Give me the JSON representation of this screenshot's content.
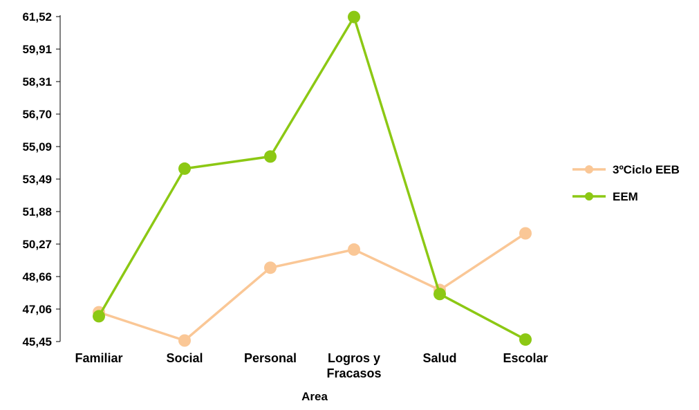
{
  "chart_data": {
    "type": "line",
    "title": "",
    "xlabel": "Area",
    "ylabel": "",
    "categories": [
      "Familiar",
      "Social",
      "Personal",
      "Logros y Fracasos",
      "Salud",
      "Escolar"
    ],
    "category_label_lines": [
      [
        "Familiar"
      ],
      [
        "Social"
      ],
      [
        "Personal"
      ],
      [
        "Logros y",
        "Fracasos"
      ],
      [
        "Salud"
      ],
      [
        "Escolar"
      ]
    ],
    "yticks": [
      "45,45",
      "47,06",
      "48,66",
      "50,27",
      "51,88",
      "53,49",
      "55,09",
      "56,70",
      "58,31",
      "59,91",
      "61,52"
    ],
    "ylim": [
      45.45,
      61.52
    ],
    "grid": false,
    "legend_position": "right",
    "series": [
      {
        "name": "3ºCiclo EEB",
        "color": "#FAC796",
        "values": [
          46.9,
          45.5,
          49.1,
          50.0,
          48.0,
          50.8
        ]
      },
      {
        "name": "EEM",
        "color": "#8CC814",
        "values": [
          46.7,
          54.0,
          54.6,
          61.5,
          47.8,
          45.55
        ]
      }
    ]
  }
}
